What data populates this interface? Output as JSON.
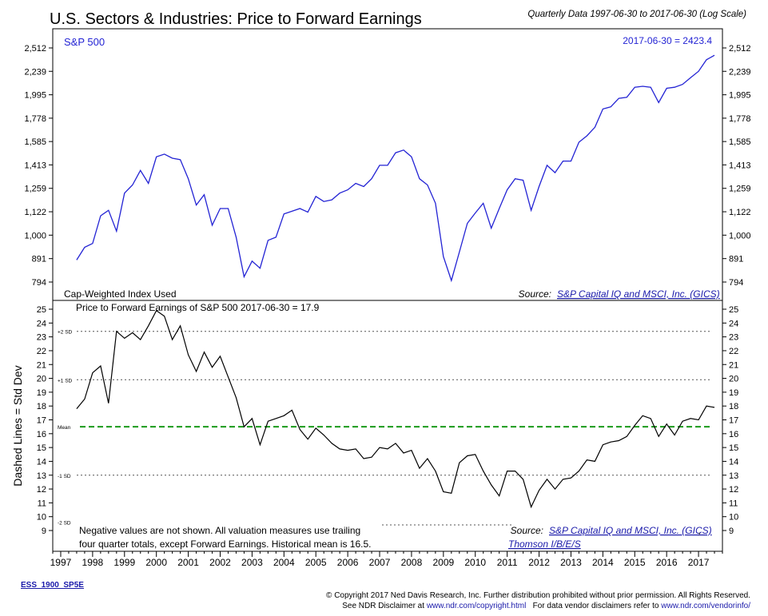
{
  "header": {
    "title": "U.S. Sectors & Industries: Price to Forward Earnings",
    "subtitle": "Quarterly Data 1997-06-30 to 2017-06-30 (Log Scale)"
  },
  "chart_data": [
    {
      "type": "line",
      "series": [
        {
          "name": "S&P 500",
          "color": "#2323d4",
          "start": 1997.5,
          "step": 0.25,
          "values": [
            885,
            942,
            960,
            1100,
            1130,
            1020,
            1230,
            1280,
            1375,
            1290,
            1470,
            1490,
            1460,
            1450,
            1320,
            1160,
            1220,
            1050,
            1140,
            1140,
            990,
            815,
            880,
            850,
            975,
            990,
            1110,
            1125,
            1140,
            1120,
            1210,
            1180,
            1190,
            1230,
            1250,
            1290,
            1270,
            1320,
            1410,
            1410,
            1500,
            1520,
            1470,
            1320,
            1280,
            1170,
            900,
            800,
            920,
            1060,
            1115,
            1170,
            1035,
            1140,
            1250,
            1320,
            1310,
            1130,
            1270,
            1410,
            1360,
            1440,
            1440,
            1580,
            1630,
            1700,
            1860,
            1880,
            1960,
            1970,
            2070,
            2080,
            2070,
            1920,
            2060,
            2070,
            2100,
            2170,
            2240,
            2370,
            2423
          ]
        }
      ],
      "annotation": "2017-06-30 = 2423.4",
      "note_left": "Cap-Weighted Index Used",
      "source_label": "Source:",
      "source_link": "S&P Capital IQ and MSCI, Inc. (GICS)",
      "yscale": "log",
      "yticks": [
        "794",
        "891",
        "1,000",
        "1,122",
        "1,259",
        "1,413",
        "1,585",
        "1,778",
        "1,995",
        "2,239",
        "2,512"
      ],
      "grid": false
    },
    {
      "type": "line",
      "title": "Price to Forward Earnings of S&P 500 2017-06-30 = 17.9",
      "ylabel": "Dashed Lines = Std Dev",
      "series": [
        {
          "name": "Price to Forward Earnings of S&P 500",
          "start": 1997.5,
          "step": 0.25,
          "values": [
            17.8,
            18.5,
            20.4,
            20.9,
            18.2,
            23.4,
            22.9,
            23.3,
            22.8,
            23.8,
            24.9,
            24.5,
            22.8,
            23.8,
            21.7,
            20.5,
            21.9,
            20.8,
            21.6,
            20.1,
            18.6,
            16.5,
            17.1,
            15.2,
            16.9,
            17.1,
            17.3,
            17.7,
            16.3,
            15.6,
            16.4,
            15.9,
            15.3,
            14.9,
            14.8,
            14.9,
            14.2,
            14.3,
            15.0,
            14.9,
            15.3,
            14.6,
            14.8,
            13.5,
            14.2,
            13.3,
            11.8,
            11.7,
            13.9,
            14.4,
            14.5,
            13.3,
            12.3,
            11.5,
            13.3,
            13.3,
            12.7,
            10.7,
            11.9,
            12.7,
            12.0,
            12.7,
            12.8,
            13.3,
            14.1,
            14.0,
            15.2,
            15.4,
            15.5,
            15.8,
            16.6,
            17.3,
            17.1,
            15.8,
            16.7,
            15.9,
            16.9,
            17.1,
            17.0,
            18.0,
            17.9
          ]
        }
      ],
      "mean": 16.5,
      "std_levels": [
        {
          "label": "+2 SD",
          "value": 23.4
        },
        {
          "label": "+1 SD",
          "value": 19.9
        },
        {
          "label": "Mean",
          "value": 16.5
        },
        {
          "label": "-1 SD",
          "value": 13.0
        },
        {
          "label": "-2 SD",
          "value": 9.6
        }
      ],
      "yticks": [
        9,
        10,
        11,
        12,
        13,
        14,
        15,
        16,
        17,
        18,
        19,
        20,
        21,
        22,
        23,
        24,
        25
      ],
      "note": [
        "Negative values are not shown. All valuation measures use trailing",
        "four quarter totals, except Forward Earnings. Historical mean is 16.5."
      ],
      "source_label": "Source:",
      "source_links": [
        "S&P Capital IQ and MSCI, Inc. (GICS)",
        "Thomson I/B/E/S"
      ],
      "source_sep": ",",
      "grid": false
    }
  ],
  "xaxis": {
    "labels": [
      "1997",
      "1998",
      "1999",
      "2000",
      "2001",
      "2002",
      "2003",
      "2004",
      "2005",
      "2006",
      "2007",
      "2008",
      "2009",
      "2010",
      "2011",
      "2012",
      "2013",
      "2014",
      "2015",
      "2016",
      "2017"
    ]
  },
  "footer": {
    "code": "ESS_1900_SP5E",
    "copyright": "© Copyright 2017 Ned Davis Research, Inc. Further distribution prohibited without prior permission. All Rights Reserved.",
    "disclaimer_prefix": "See NDR Disclaimer at",
    "disclaimer_link": "www.ndr.com/copyright.html",
    "vendor_prefix": "For data vendor disclaimers refer to",
    "vendor_link": "www.ndr.com/vendorinfo/"
  },
  "colors": {
    "sp500": "#2323d4",
    "pe": "#000000",
    "mean": "#1a9a1a",
    "dashed": "#555555",
    "link": "#1a1aaa"
  }
}
